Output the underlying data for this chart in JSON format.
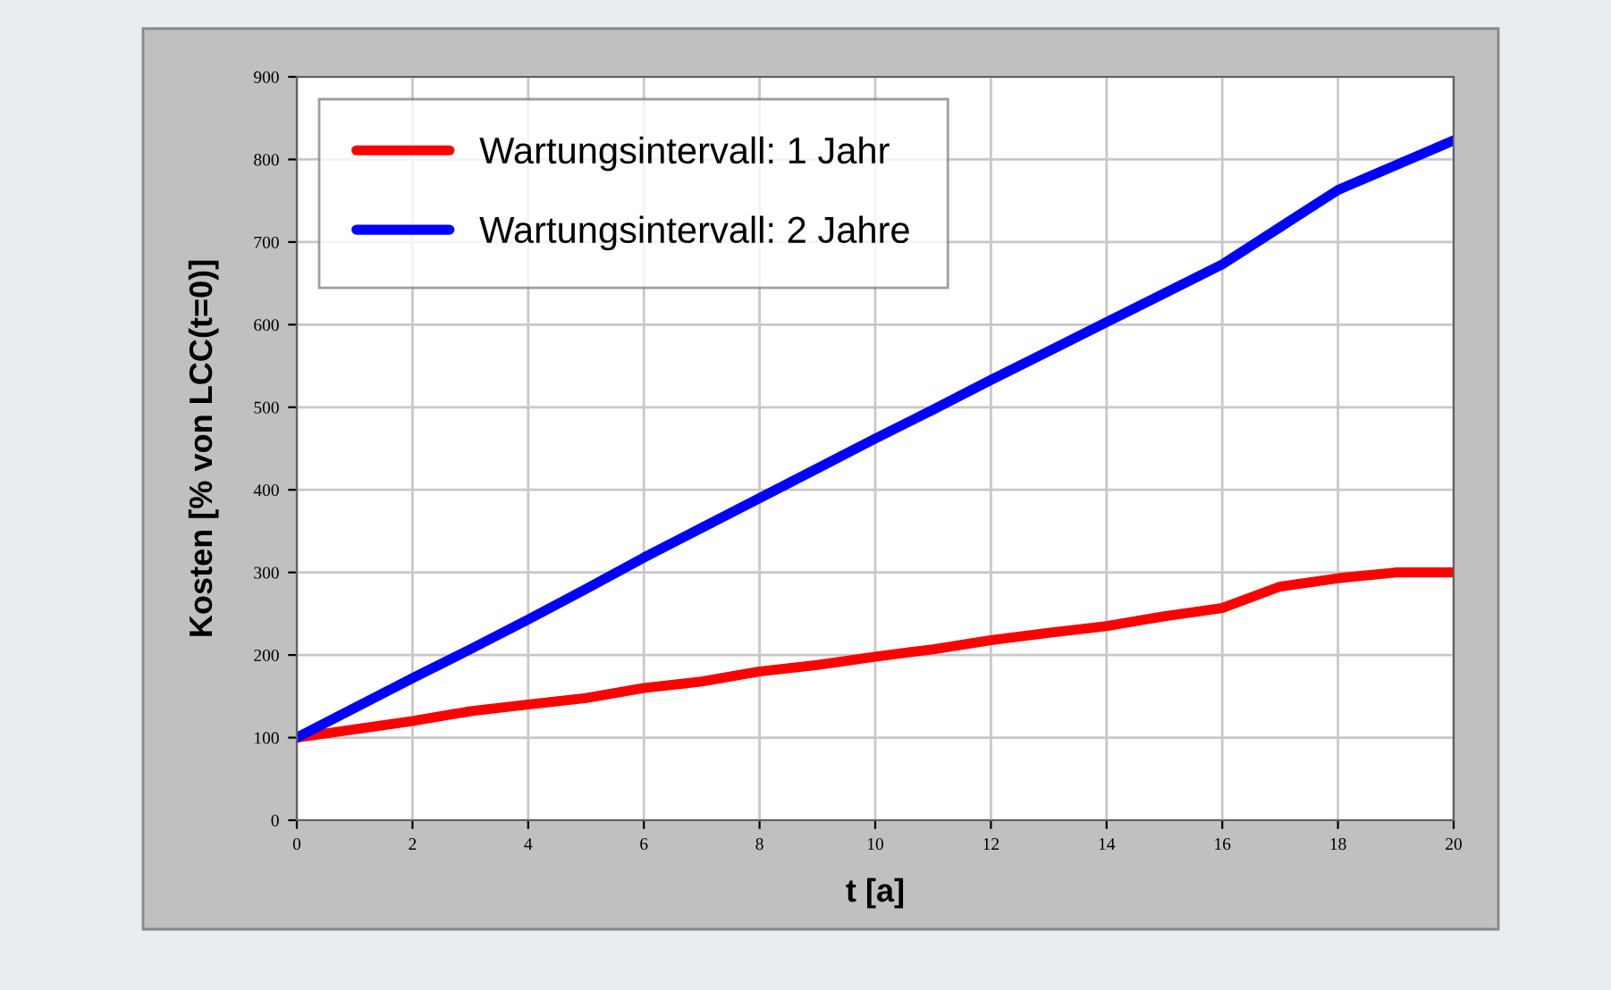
{
  "chart_data": {
    "type": "line",
    "xlabel": "t [a]",
    "ylabel": "Kosten [% von LCC(t=0)]",
    "x": [
      0,
      1,
      2,
      3,
      4,
      5,
      6,
      7,
      8,
      9,
      10,
      11,
      12,
      13,
      14,
      15,
      16,
      17,
      18,
      19,
      20
    ],
    "series": [
      {
        "name": "Wartungsintervall: 1 Jahr",
        "color": "#ff0000",
        "values": [
          100,
          110,
          120,
          132,
          140,
          148,
          160,
          168,
          180,
          188,
          198,
          207,
          218,
          227,
          235,
          247,
          257,
          283,
          293,
          300,
          300
        ]
      },
      {
        "name": "Wartungsintervall: 2 Jahre",
        "color": "#0000ff",
        "values": [
          100,
          136,
          172,
          207,
          243,
          280,
          318,
          354,
          390,
          426,
          462,
          497,
          533,
          568,
          603,
          638,
          673,
          718,
          763,
          793,
          823
        ]
      }
    ],
    "xlim": [
      0,
      20
    ],
    "xticks": [
      0,
      2,
      4,
      6,
      8,
      10,
      12,
      14,
      16,
      18,
      20
    ],
    "ylim": [
      0,
      900
    ],
    "yticks": [
      0,
      100,
      200,
      300,
      400,
      500,
      600,
      700,
      800,
      900
    ],
    "grid": true,
    "legend": "top left",
    "marker": "none",
    "line_style": "solid"
  }
}
